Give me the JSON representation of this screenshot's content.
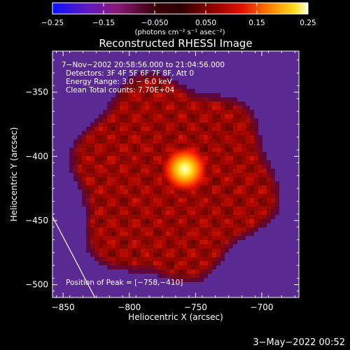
{
  "chart_data": {
    "type": "heatmap",
    "title": "Reconstructed RHESSI Image",
    "xlabel": "Heliocentric X (arcsec)",
    "ylabel": "Heliocentric Y (arcsec)",
    "xlim": [
      -858,
      -672
    ],
    "ylim": [
      -510,
      -318
    ],
    "x_ticks": [
      -850,
      -800,
      -750,
      -700
    ],
    "x_tick_labels": [
      "−850",
      "−800",
      "−750",
      "−700"
    ],
    "y_ticks": [
      -350,
      -400,
      -450,
      -500
    ],
    "y_tick_labels": [
      "−350",
      "−400",
      "−450",
      "−500"
    ],
    "colorbar": {
      "range": [
        -0.25,
        0.25
      ],
      "ticks": [
        -0.25,
        -0.15,
        -0.05,
        0.05,
        0.15,
        0.25
      ],
      "tick_labels": [
        "−0.25",
        "−0.15",
        "−0.050",
        "0.050",
        "0.15",
        "0.25"
      ],
      "units": "(photons cm⁻² s⁻¹ asec⁻²)"
    },
    "info_lines": [
      "7−Nov−2002 20:58:56.000 to 21:04:56.000",
      "Detectors: 3F 4F 5F 6F 7F 8F, Att 0",
      "Energy Range: 3.0 − 6.0 keV",
      "Clean    Total counts: 7.70E+04"
    ],
    "peak_label": "Position of Peak = [−758,−410]",
    "peak": {
      "x": -758,
      "y": -410
    },
    "source_region": {
      "center_x": -768,
      "center_y": -418,
      "radius": 78
    },
    "limb_line": [
      [
        -858,
        -447
      ],
      [
        -826,
        -510
      ]
    ]
  },
  "footer": {
    "date": "3−May−2022 00:52"
  }
}
